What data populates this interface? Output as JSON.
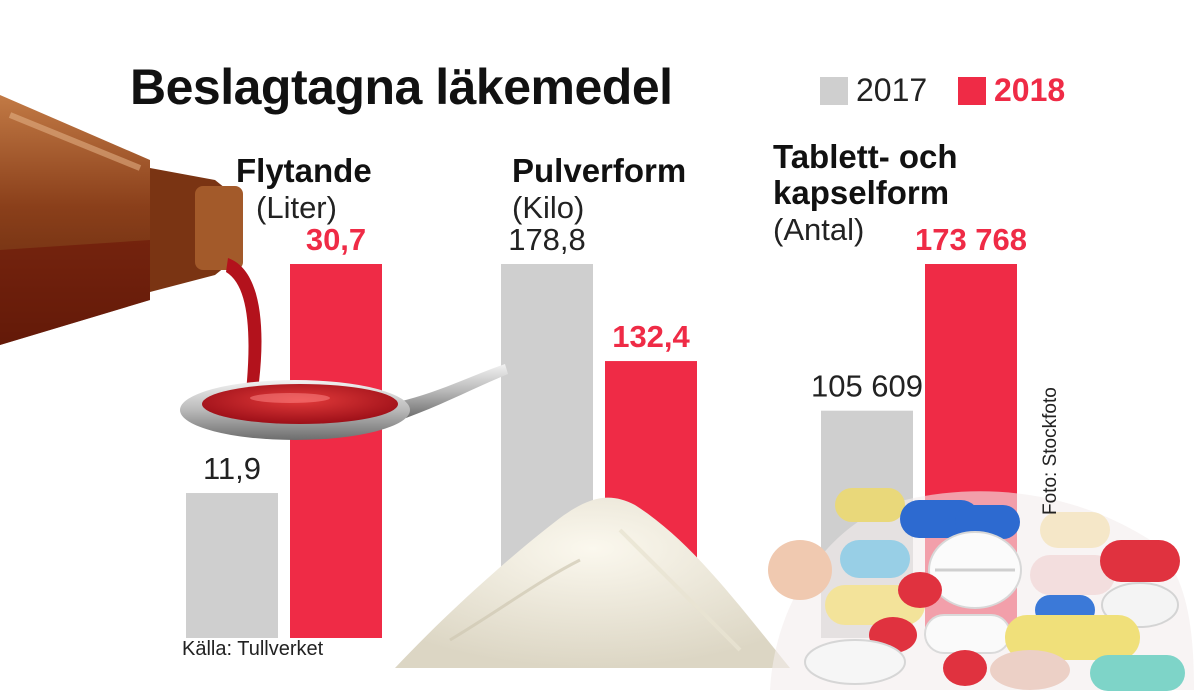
{
  "title": "Beslagtagna läkemedel",
  "legend": [
    {
      "label": "2017",
      "color": "#cfcfcf"
    },
    {
      "label": "2018",
      "color": "#ef2b46"
    }
  ],
  "source": "Källa: Tullverket",
  "photo_credit": "Foto: Stockfoto",
  "chart_data": {
    "type": "bar",
    "title": "Beslagtagna läkemedel",
    "series_names": [
      "2017",
      "2018"
    ],
    "groups": [
      {
        "title_lines": [
          "Flytande"
        ],
        "unit": "(Liter)",
        "values": [
          11.9,
          30.7
        ],
        "labels": [
          "11,9",
          "30,7"
        ]
      },
      {
        "title_lines": [
          "Pulverform"
        ],
        "unit": "(Kilo)",
        "values": [
          178.8,
          132.4
        ],
        "labels": [
          "178,8",
          "132,4"
        ]
      },
      {
        "title_lines": [
          "Tablett- och",
          "kapselform"
        ],
        "unit": "(Antal)",
        "values": [
          105609,
          173768
        ],
        "labels": [
          "105 609",
          "173 768"
        ]
      }
    ],
    "legend_position": "top-right",
    "grid": false
  }
}
